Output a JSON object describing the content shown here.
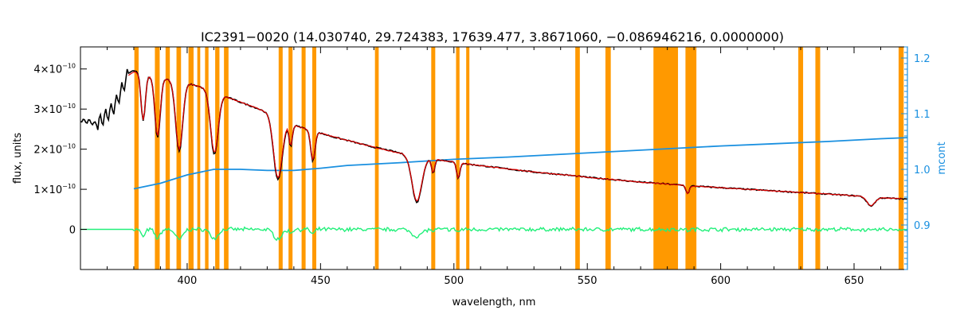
{
  "colors": {
    "observed": "#000000",
    "model": "#e00000",
    "continuum": "#1a90e0",
    "residual": "#22f07a",
    "mask": "#ff9900",
    "right_axis": "#1a90e0"
  },
  "chart_data": {
    "type": "line",
    "title": "IC2391−0020    (14.030740, 29.724383, 17639.477, 3.8671060, −0.086946216, 0.0000000)",
    "xlabel": "wavelength, nm",
    "ylabel": "flux, units",
    "ylabel_right": "mcont",
    "xlim": [
      360,
      670
    ],
    "ylim": [
      -1e-10,
      4.55e-10
    ],
    "ylim_right": [
      0.82,
      1.22
    ],
    "x_ticks": [
      400,
      450,
      500,
      550,
      600,
      650
    ],
    "x_tick_labels": [
      "400",
      "450",
      "500",
      "550",
      "600",
      "650"
    ],
    "y_ticks": [
      0,
      1e-10,
      2e-10,
      3e-10,
      4e-10
    ],
    "y_tick_labels": [
      {
        "base": "0",
        "exp": ""
      },
      {
        "base": "1×10",
        "exp": "−10"
      },
      {
        "base": "2×10",
        "exp": "−10"
      },
      {
        "base": "3×10",
        "exp": "−10"
      },
      {
        "base": "4×10",
        "exp": "−10"
      }
    ],
    "y_right_ticks": [
      0.9,
      1.0,
      1.1,
      1.2
    ],
    "y_right_tick_labels": [
      "0.9",
      "1.0",
      "1.1",
      "1.2"
    ],
    "mask_bands": [
      [
        380.2,
        381.8
      ],
      [
        387.9,
        389.7
      ],
      [
        391.9,
        393.5
      ],
      [
        396.0,
        397.7
      ],
      [
        400.5,
        402.4
      ],
      [
        403.8,
        404.9
      ],
      [
        406.7,
        408.0
      ],
      [
        410.5,
        412.1
      ],
      [
        413.8,
        415.5
      ],
      [
        434.3,
        435.8
      ],
      [
        438.0,
        439.5
      ],
      [
        442.9,
        444.4
      ],
      [
        446.9,
        448.4
      ],
      [
        470.4,
        471.8
      ],
      [
        491.5,
        493.0
      ],
      [
        500.8,
        502.1
      ],
      [
        504.6,
        505.8
      ],
      [
        545.5,
        547.2
      ],
      [
        556.8,
        558.8
      ],
      [
        574.8,
        584.0
      ],
      [
        586.8,
        590.9
      ],
      [
        629.1,
        630.9
      ],
      [
        635.5,
        637.3
      ],
      [
        666.7,
        668.6
      ]
    ],
    "series": [
      {
        "role": "observed",
        "x": [
          360,
          364,
          366,
          370,
          373,
          376,
          378,
          380,
          383,
          386,
          390,
          395,
          400,
          405,
          410,
          415,
          420,
          425,
          430,
          433,
          436,
          440,
          445,
          450,
          455,
          460,
          465,
          470,
          475,
          480,
          485,
          490,
          495,
          500,
          505,
          510,
          520,
          530,
          540,
          550,
          560,
          570,
          580,
          590,
          600,
          610,
          620,
          630,
          640,
          650,
          660,
          670
        ],
        "y": [
          2.72e-10,
          2.68e-10,
          2.62e-10,
          2.85e-10,
          3.1e-10,
          3.55e-10,
          3.9e-10,
          3.95e-10,
          3.92e-10,
          3.82e-10,
          3.78e-10,
          3.72e-10,
          3.65e-10,
          3.55e-10,
          3.42e-10,
          3.3e-10,
          3.17e-10,
          3.05e-10,
          2.92e-10,
          2.82e-10,
          2.7e-10,
          2.6e-10,
          2.5e-10,
          2.4e-10,
          2.3e-10,
          2.22e-10,
          2.13e-10,
          2.05e-10,
          1.98e-10,
          1.9e-10,
          1.84e-10,
          1.78e-10,
          1.73e-10,
          1.68e-10,
          1.63e-10,
          1.59e-10,
          1.51e-10,
          1.43e-10,
          1.37e-10,
          1.3e-10,
          1.24e-10,
          1.18e-10,
          1.13e-10,
          1.08e-10,
          1.04e-10,
          1e-10,
          9.6e-11,
          9.2e-11,
          8.8e-11,
          8.4e-11,
          7.9e-11,
          7.5e-11
        ]
      },
      {
        "role": "model",
        "x": [
          378,
          380,
          383,
          386,
          390,
          395,
          400,
          405,
          410,
          415,
          420,
          425,
          430,
          440,
          450,
          460,
          470,
          480,
          490,
          500,
          510,
          520,
          530,
          540,
          550,
          560,
          570,
          580,
          590,
          600,
          610,
          620,
          630,
          640,
          650,
          660,
          668
        ],
        "y": [
          3.85e-10,
          3.93e-10,
          3.9e-10,
          3.82e-10,
          3.78e-10,
          3.72e-10,
          3.65e-10,
          3.55e-10,
          3.42e-10,
          3.3e-10,
          3.17e-10,
          3.05e-10,
          2.92e-10,
          2.6e-10,
          2.4e-10,
          2.22e-10,
          2.05e-10,
          1.9e-10,
          1.78e-10,
          1.68e-10,
          1.59e-10,
          1.51e-10,
          1.43e-10,
          1.37e-10,
          1.3e-10,
          1.24e-10,
          1.18e-10,
          1.13e-10,
          1.08e-10,
          1.04e-10,
          1e-10,
          9.6e-11,
          9.2e-11,
          8.8e-11,
          8.4e-11,
          7.9e-11,
          7.6e-11
        ]
      },
      {
        "role": "absorption_lines",
        "center": [
          383.5,
          388.9,
          397.0,
          410.2,
          434.0,
          438.8,
          447.1,
          486.1,
          492.2,
          501.6,
          587.6,
          656.3
        ],
        "depth": [
          1.2e-10,
          1.5e-10,
          1.75e-10,
          1.55e-10,
          1.55e-10,
          5.5e-11,
          7.5e-11,
          1.15e-10,
          3.5e-11,
          4e-11,
          2e-11,
          2.2e-11
        ],
        "width_nm": [
          0.8,
          1.0,
          1.3,
          1.4,
          1.6,
          0.6,
          0.8,
          1.8,
          0.6,
          0.6,
          0.6,
          1.5
        ]
      },
      {
        "role": "continuum",
        "axis": "right",
        "x": [
          380,
          390,
          400,
          410,
          420,
          430,
          440,
          450,
          460,
          480,
          500,
          520,
          540,
          560,
          580,
          600,
          620,
          640,
          660,
          670
        ],
        "y": [
          0.965,
          0.975,
          0.99,
          1.0,
          1.0,
          0.998,
          0.998,
          1.002,
          1.007,
          1.012,
          1.018,
          1.022,
          1.027,
          1.032,
          1.037,
          1.042,
          1.046,
          1.05,
          1.055,
          1.057
        ]
      },
      {
        "role": "residual",
        "x": [
          360,
          380,
          670
        ],
        "y": [
          0,
          0,
          0
        ]
      }
    ]
  }
}
